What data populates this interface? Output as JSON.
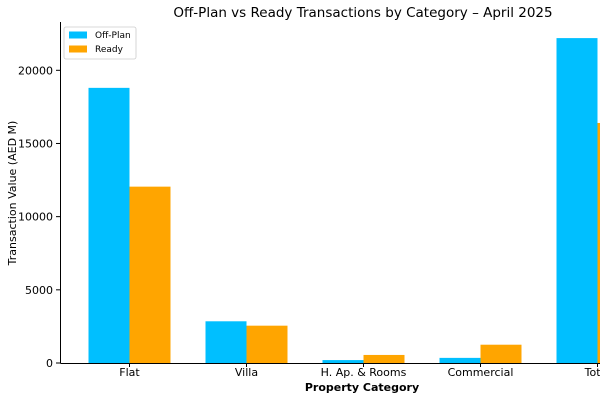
{
  "chart_data": {
    "type": "bar",
    "title": "Off-Plan vs Ready Transactions by Category – April 2025",
    "xlabel": "Property Category",
    "ylabel": "Transaction Value (AED M)",
    "categories": [
      "Flat",
      "Villa",
      "H. Ap. & Rooms",
      "Commercial",
      "Total"
    ],
    "series": [
      {
        "name": "Off-Plan",
        "color": "#00bfff",
        "values": [
          18800,
          2850,
          200,
          350,
          22200
        ]
      },
      {
        "name": "Ready",
        "color": "#ffa500",
        "values": [
          12050,
          2550,
          550,
          1250,
          16400
        ]
      }
    ],
    "yticks": [
      0,
      5000,
      10000,
      15000,
      20000
    ],
    "ylim": [
      0,
      23300
    ],
    "grid": false,
    "legend_position": "top-left"
  }
}
